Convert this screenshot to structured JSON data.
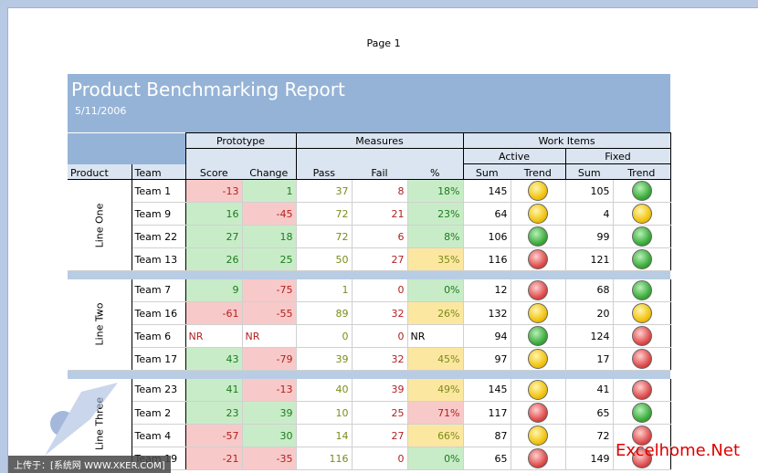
{
  "page_label": "Page 1",
  "report": {
    "title": "Product Benchmarking Report",
    "date": "5/11/2006"
  },
  "headers": {
    "prototype": "Prototype",
    "measures": "Measures",
    "work_items": "Work Items",
    "active": "Active",
    "fixed": "Fixed",
    "product": "Product",
    "team": "Team",
    "score": "Score",
    "change": "Change",
    "pass": "Pass",
    "fail": "Fail",
    "pct": "%",
    "sum": "Sum",
    "trend": "Trend"
  },
  "lines": [
    {
      "name": "Line One",
      "rows": [
        {
          "team": "Team 1",
          "score": "-13",
          "change": "1",
          "pass": "37",
          "fail": "8",
          "pct": "18%",
          "a_sum": "145",
          "a_trend": "yellow",
          "f_sum": "105",
          "f_trend": "green",
          "score_bg": "red",
          "change_bg": "green",
          "pct_bg": "green"
        },
        {
          "team": "Team 9",
          "score": "16",
          "change": "-45",
          "pass": "72",
          "fail": "21",
          "pct": "23%",
          "a_sum": "64",
          "a_trend": "yellow",
          "f_sum": "4",
          "f_trend": "yellow",
          "score_bg": "green",
          "change_bg": "red",
          "pct_bg": "green"
        },
        {
          "team": "Team 22",
          "score": "27",
          "change": "18",
          "pass": "72",
          "fail": "6",
          "pct": "8%",
          "a_sum": "106",
          "a_trend": "green",
          "f_sum": "99",
          "f_trend": "green",
          "score_bg": "green",
          "change_bg": "green",
          "pct_bg": "green"
        },
        {
          "team": "Team 13",
          "score": "26",
          "change": "25",
          "pass": "50",
          "fail": "27",
          "pct": "35%",
          "a_sum": "116",
          "a_trend": "red",
          "f_sum": "121",
          "f_trend": "green",
          "score_bg": "green",
          "change_bg": "green",
          "pct_bg": "yellow"
        }
      ]
    },
    {
      "name": "Line Two",
      "rows": [
        {
          "team": "Team 7",
          "score": "9",
          "change": "-75",
          "pass": "1",
          "fail": "0",
          "pct": "0%",
          "a_sum": "12",
          "a_trend": "red",
          "f_sum": "68",
          "f_trend": "green",
          "score_bg": "green",
          "change_bg": "red",
          "pct_bg": "green"
        },
        {
          "team": "Team 16",
          "score": "-61",
          "change": "-55",
          "pass": "89",
          "fail": "32",
          "pct": "26%",
          "a_sum": "132",
          "a_trend": "yellow",
          "f_sum": "20",
          "f_trend": "yellow",
          "score_bg": "red",
          "change_bg": "red",
          "pct_bg": "yellow"
        },
        {
          "team": "Team 6",
          "score": "NR",
          "change": "NR",
          "pass": "0",
          "fail": "0",
          "pct": "NR",
          "a_sum": "94",
          "a_trend": "green",
          "f_sum": "124",
          "f_trend": "red",
          "score_bg": "none",
          "change_bg": "none",
          "pct_bg": "none"
        },
        {
          "team": "Team 17",
          "score": "43",
          "change": "-79",
          "pass": "39",
          "fail": "32",
          "pct": "45%",
          "a_sum": "97",
          "a_trend": "yellow",
          "f_sum": "17",
          "f_trend": "red",
          "score_bg": "green",
          "change_bg": "red",
          "pct_bg": "yellow"
        }
      ]
    },
    {
      "name": "Line Three",
      "rows": [
        {
          "team": "Team 23",
          "score": "41",
          "change": "-13",
          "pass": "40",
          "fail": "39",
          "pct": "49%",
          "a_sum": "145",
          "a_trend": "yellow",
          "f_sum": "41",
          "f_trend": "red",
          "score_bg": "green",
          "change_bg": "red",
          "pct_bg": "yellow"
        },
        {
          "team": "Team 2",
          "score": "23",
          "change": "39",
          "pass": "10",
          "fail": "25",
          "pct": "71%",
          "a_sum": "117",
          "a_trend": "red",
          "f_sum": "65",
          "f_trend": "green",
          "score_bg": "green",
          "change_bg": "green",
          "pct_bg": "red"
        },
        {
          "team": "Team 4",
          "score": "-57",
          "change": "30",
          "pass": "14",
          "fail": "27",
          "pct": "66%",
          "a_sum": "87",
          "a_trend": "yellow",
          "f_sum": "72",
          "f_trend": "red",
          "score_bg": "red",
          "change_bg": "green",
          "pct_bg": "yellow"
        },
        {
          "team": "Team 19",
          "score": "-21",
          "change": "-35",
          "pass": "116",
          "fail": "0",
          "pct": "0%",
          "a_sum": "65",
          "a_trend": "red",
          "f_sum": "149",
          "f_trend": "red",
          "score_bg": "red",
          "change_bg": "red",
          "pct_bg": "green"
        }
      ]
    }
  ],
  "watermarks": {
    "left": "上传于：[系统网 WWW.XKER.COM]",
    "right": "Excelhome.Net"
  }
}
